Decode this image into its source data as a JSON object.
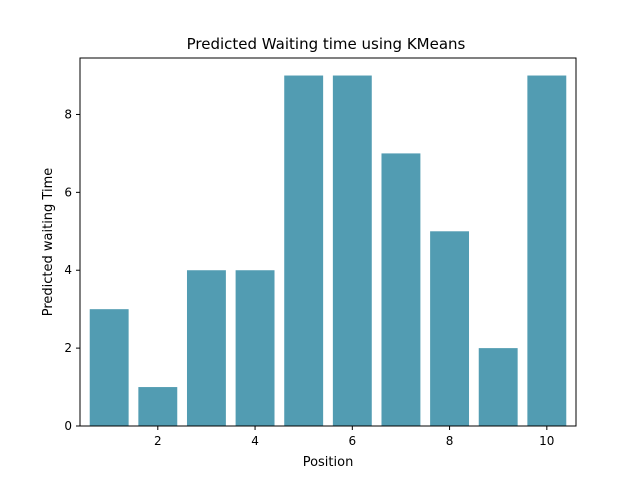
{
  "chart_data": {
    "type": "bar",
    "title": "Predicted Waiting time using KMeans",
    "xlabel": "Position",
    "ylabel": "Predicted waiting Time",
    "x": [
      1,
      2,
      3,
      4,
      5,
      6,
      7,
      8,
      9,
      10
    ],
    "values": [
      3,
      1,
      4,
      4,
      9,
      9,
      7,
      5,
      2,
      9
    ],
    "xlim": [
      0.4,
      10.6
    ],
    "ylim": [
      0,
      9.45
    ],
    "xticks": [
      2,
      4,
      6,
      8,
      10
    ],
    "yticks": [
      0,
      2,
      4,
      6,
      8
    ],
    "bar_color": "#529cb2",
    "grid": false,
    "legend": "none"
  }
}
